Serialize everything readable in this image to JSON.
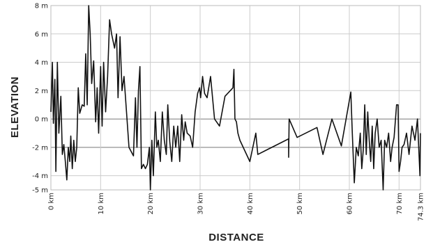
{
  "chart_data": {
    "type": "line",
    "xlabel": "DISTANCE",
    "ylabel": "ELEVATION",
    "color": "#111111",
    "grid": true,
    "xlim": [
      0,
      74.3
    ],
    "ylim": [
      -5,
      8
    ],
    "xticks": [
      {
        "value": 0,
        "label": "0 km"
      },
      {
        "value": 10,
        "label": "10 km"
      },
      {
        "value": 20,
        "label": "20 km"
      },
      {
        "value": 30,
        "label": "30 km"
      },
      {
        "value": 40,
        "label": "40 km"
      },
      {
        "value": 50,
        "label": "50 km"
      },
      {
        "value": 60,
        "label": "60 km"
      },
      {
        "value": 70,
        "label": "70 km"
      },
      {
        "value": 74.3,
        "label": "74.3 km"
      }
    ],
    "yticks": [
      {
        "value": 8,
        "label": "8 m"
      },
      {
        "value": 6,
        "label": "6 m"
      },
      {
        "value": 4,
        "label": "4 m"
      },
      {
        "value": 2,
        "label": "2 m"
      },
      {
        "value": 0,
        "label": "0 m"
      },
      {
        "value": -2,
        "label": "-2 m"
      },
      {
        "value": -4,
        "label": "-4 m"
      },
      {
        "value": -5,
        "label": "-5 m"
      }
    ],
    "x": [
      0,
      0.3,
      0.5,
      0.8,
      1.0,
      1.3,
      1.6,
      2.0,
      2.3,
      2.6,
      2.9,
      3.2,
      3.5,
      3.8,
      4.0,
      4.3,
      4.6,
      4.9,
      5.2,
      5.5,
      5.8,
      6.3,
      6.7,
      7.0,
      7.3,
      7.6,
      7.9,
      8.2,
      8.6,
      9.0,
      9.3,
      9.6,
      10.0,
      10.3,
      10.6,
      11.0,
      11.4,
      11.8,
      12.2,
      12.8,
      13.2,
      13.5,
      13.9,
      14.3,
      14.7,
      15.2,
      15.7,
      16.6,
      17.0,
      17.3,
      17.6,
      17.9,
      18.2,
      18.6,
      19.0,
      19.4,
      19.8,
      20.0,
      20.3,
      20.6,
      21.0,
      21.3,
      21.6,
      22.0,
      22.4,
      22.8,
      23.2,
      23.5,
      23.9,
      24.3,
      24.7,
      25.1,
      25.5,
      25.9,
      26.3,
      26.7,
      27.0,
      27.4,
      28.0,
      28.5,
      29.0,
      29.5,
      29.9,
      30.1,
      30.5,
      30.9,
      31.4,
      32.1,
      32.9,
      33.9,
      35.0,
      36.6,
      36.8,
      37.0,
      37.3,
      37.6,
      38.0,
      40.0,
      41.2,
      41.6,
      47.8,
      47.8,
      47.9,
      49.5,
      53.5,
      54.7,
      55.2,
      56.5,
      58.4,
      60.3,
      60.6,
      61.0,
      61.4,
      61.8,
      62.2,
      62.5,
      62.8,
      63.1,
      63.4,
      63.7,
      64.0,
      64.3,
      64.6,
      64.9,
      65.2,
      65.6,
      66.0,
      66.4,
      66.8,
      67.1,
      67.5,
      67.9,
      68.3,
      68.6,
      69.0,
      69.5,
      69.8,
      70.0,
      70.3,
      70.6,
      71.0,
      71.5,
      72.0,
      72.6,
      73.2,
      73.7,
      74.2,
      74.3
    ],
    "values": [
      0.5,
      4,
      -0.3,
      2.8,
      -3.7,
      4,
      -1,
      1.6,
      -2.5,
      -1.8,
      -3,
      -4.3,
      -2,
      -3,
      -1.2,
      -3.5,
      -1.5,
      -3,
      -2,
      2.2,
      0.4,
      1,
      0.9,
      4.6,
      1,
      8,
      6,
      2.5,
      4.1,
      -0.2,
      2.2,
      -1,
      3.7,
      -0.5,
      4,
      0.5,
      3,
      7,
      6,
      5,
      6,
      1.5,
      5.8,
      2,
      3,
      0.5,
      -2,
      -2.6,
      1.5,
      -2,
      2,
      3.7,
      -3.5,
      -3.2,
      -3.5,
      -3.2,
      -2,
      -5,
      -1.5,
      -4,
      0.5,
      -2,
      -1.5,
      -3,
      0.5,
      -1.5,
      -2.5,
      1,
      -1.6,
      -3,
      -0.5,
      -2,
      -0.5,
      -3,
      0.3,
      -1.5,
      -0.2,
      -1,
      -1.2,
      -2,
      0.5,
      1.8,
      2.2,
      1.5,
      3,
      1.8,
      1.5,
      3,
      0,
      -0.5,
      1.6,
      2.2,
      3.5,
      0,
      -0.2,
      -1,
      -1.5,
      -3,
      -1,
      -2.5,
      -1.4,
      -2.7,
      0,
      -1.3,
      -0.6,
      -2.5,
      -1.8,
      0,
      -1.9,
      1.9,
      -1,
      -4.5,
      -2,
      -2.6,
      -1,
      -3.5,
      -2.2,
      1,
      -2.5,
      0.5,
      -1.5,
      -3,
      -0.5,
      -3.5,
      -1,
      0,
      -2,
      -1.5,
      -5,
      -1.5,
      -2,
      -1,
      -3,
      -2,
      -1.3,
      1,
      1,
      -3.7,
      -3,
      -2,
      -1.8,
      -1,
      -2.5,
      -0.5,
      -1.5,
      0,
      -4,
      -1
    ]
  }
}
